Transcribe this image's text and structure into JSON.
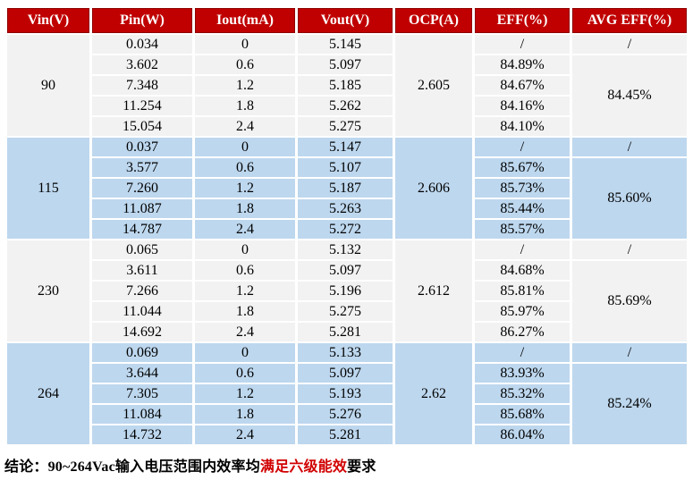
{
  "table": {
    "columns": [
      "Vin(V)",
      "Pin(W)",
      "Iout(mA)",
      "Vout(V)",
      "OCP(A)",
      "EFF(%)",
      "AVG EFF(%)"
    ],
    "groups": [
      {
        "vin": "90",
        "ocp": "2.605",
        "avg_eff_first": "/",
        "avg_eff": "84.45%",
        "rows": [
          {
            "pin": "0.034",
            "iout": "0",
            "vout": "5.145",
            "eff": "/"
          },
          {
            "pin": "3.602",
            "iout": "0.6",
            "vout": "5.097",
            "eff": "84.89%"
          },
          {
            "pin": "7.348",
            "iout": "1.2",
            "vout": "5.185",
            "eff": "84.67%"
          },
          {
            "pin": "11.254",
            "iout": "1.8",
            "vout": "5.262",
            "eff": "84.16%"
          },
          {
            "pin": "15.054",
            "iout": "2.4",
            "vout": "5.275",
            "eff": "84.10%"
          }
        ]
      },
      {
        "vin": "115",
        "ocp": "2.606",
        "avg_eff_first": "/",
        "avg_eff": "85.60%",
        "rows": [
          {
            "pin": "0.037",
            "iout": "0",
            "vout": "5.147",
            "eff": "/"
          },
          {
            "pin": "3.577",
            "iout": "0.6",
            "vout": "5.107",
            "eff": "85.67%"
          },
          {
            "pin": "7.260",
            "iout": "1.2",
            "vout": "5.187",
            "eff": "85.73%"
          },
          {
            "pin": "11.087",
            "iout": "1.8",
            "vout": "5.263",
            "eff": "85.44%"
          },
          {
            "pin": "14.787",
            "iout": "2.4",
            "vout": "5.272",
            "eff": "85.57%"
          }
        ]
      },
      {
        "vin": "230",
        "ocp": "2.612",
        "avg_eff_first": "/",
        "avg_eff": "85.69%",
        "rows": [
          {
            "pin": "0.065",
            "iout": "0",
            "vout": "5.132",
            "eff": "/"
          },
          {
            "pin": "3.611",
            "iout": "0.6",
            "vout": "5.097",
            "eff": "84.68%"
          },
          {
            "pin": "7.266",
            "iout": "1.2",
            "vout": "5.196",
            "eff": "85.81%"
          },
          {
            "pin": "11.044",
            "iout": "1.8",
            "vout": "5.275",
            "eff": "85.97%"
          },
          {
            "pin": "14.692",
            "iout": "2.4",
            "vout": "5.281",
            "eff": "86.27%"
          }
        ]
      },
      {
        "vin": "264",
        "ocp": "2.62",
        "avg_eff_first": "/",
        "avg_eff": "85.24%",
        "rows": [
          {
            "pin": "0.069",
            "iout": "0",
            "vout": "5.133",
            "eff": "/"
          },
          {
            "pin": "3.644",
            "iout": "0.6",
            "vout": "5.097",
            "eff": "83.93%"
          },
          {
            "pin": "7.305",
            "iout": "1.2",
            "vout": "5.193",
            "eff": "85.32%"
          },
          {
            "pin": "11.084",
            "iout": "1.8",
            "vout": "5.276",
            "eff": "85.68%"
          },
          {
            "pin": "14.732",
            "iout": "2.4",
            "vout": "5.281",
            "eff": "86.04%"
          }
        ]
      }
    ]
  },
  "conclusion": {
    "prefix": "结论：90~264Vac输入电压范围内效率均",
    "highlight": "满足六级能效",
    "suffix": "要求"
  },
  "colors": {
    "header_bg": "#C00000",
    "header_border": "#8F0000",
    "group_shade_light": "#F2F2F2",
    "group_shade_blue": "#BDD7EE",
    "highlight_red": "#D10000"
  }
}
